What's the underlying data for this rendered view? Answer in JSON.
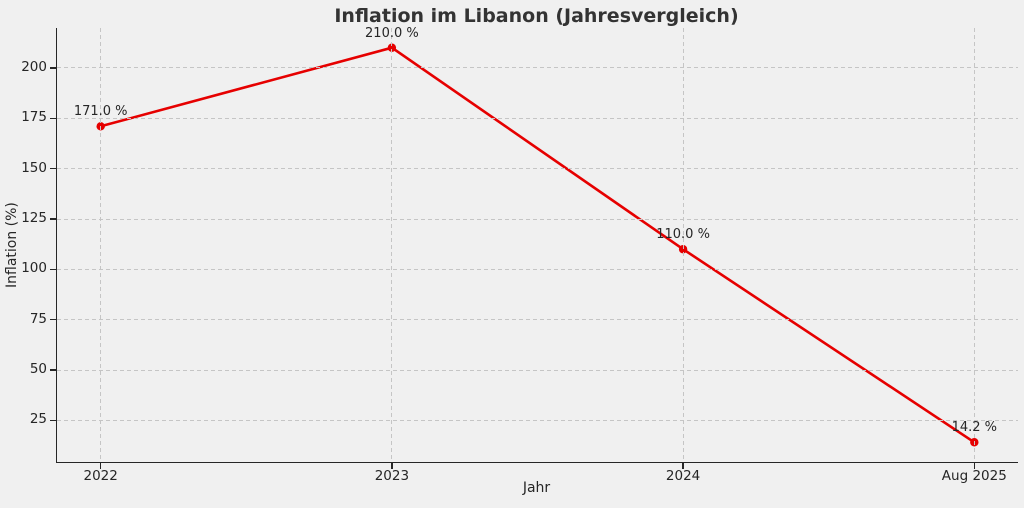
{
  "figure": {
    "background": "#f0f0f0"
  },
  "chart_data": {
    "type": "line",
    "title": "Inflation im Libanon (Jahresvergleich)",
    "xlabel": "Jahr",
    "ylabel": "Inflation (%)",
    "categories": [
      "2022",
      "2023",
      "2024",
      "Aug 2025"
    ],
    "series": [
      {
        "name": "Inflation",
        "values": [
          171.0,
          210.0,
          110.0,
          14.2
        ],
        "point_labels": [
          "171.0 %",
          "210.0 %",
          "110.0 %",
          "14.2 %"
        ],
        "color": "#e60000",
        "marker": "circle",
        "line_width": 2.6
      }
    ],
    "y_ticks": [
      25,
      50,
      75,
      100,
      125,
      150,
      175,
      200
    ],
    "ylim": [
      4.4,
      219.8
    ],
    "grid": "dashed",
    "legend_position": "none"
  },
  "colors": {
    "grid": "#c5c5c5",
    "spine": "#262626",
    "tick_text": "#262626",
    "title_text": "#333333"
  }
}
